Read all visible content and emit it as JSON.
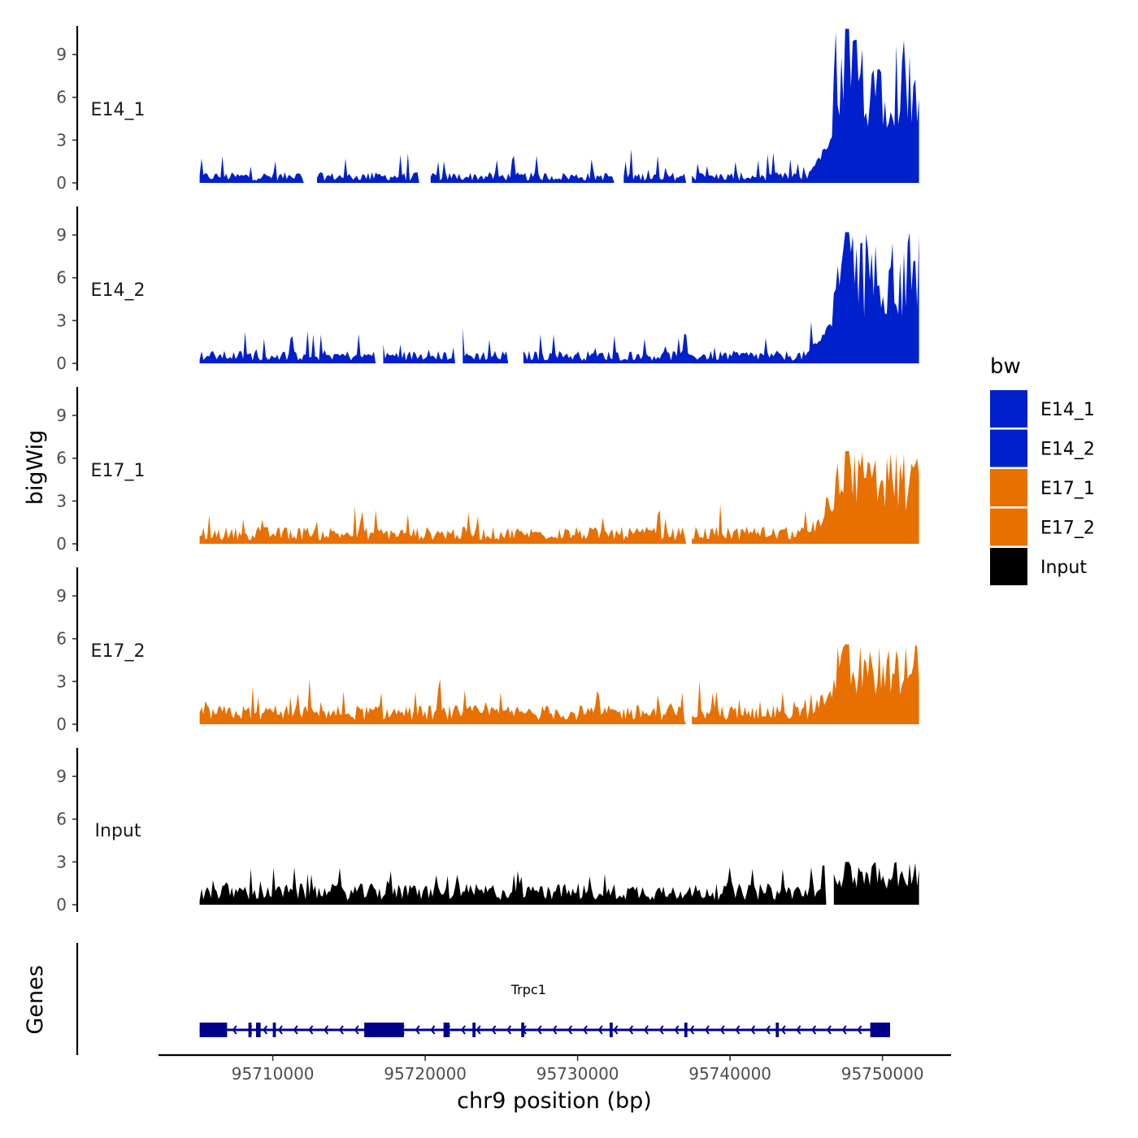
{
  "chart_data": {
    "type": "area",
    "panel_ylabel": "bigWig",
    "genes_ylabel": "Genes",
    "xlabel": "chr9 position (bp)",
    "xlim": [
      95702500,
      95754500
    ],
    "xticks": [
      95710000,
      95720000,
      95730000,
      95740000,
      95750000
    ],
    "x_tick_labels": [
      "95710000",
      "95720000",
      "95730000",
      "95740000",
      "95750000"
    ],
    "ylim": [
      0,
      11
    ],
    "yticks": [
      0,
      3,
      6,
      9
    ],
    "y_tick_labels": [
      "0",
      "3",
      "6",
      "9"
    ],
    "legend_title": "bw",
    "legend_position": "right",
    "data_range": [
      95705200,
      95752400
    ],
    "series": [
      {
        "name": "E14_1",
        "color": "#0020CC",
        "baseline": 0.5,
        "noise": 0.7,
        "peak_max": 10.8,
        "gaps": [
          [
            95712000,
            95712800
          ],
          [
            95719500,
            95720300
          ],
          [
            95732300,
            95732900
          ],
          [
            95737000,
            95737400
          ]
        ]
      },
      {
        "name": "E14_2",
        "color": "#0020CC",
        "baseline": 0.6,
        "noise": 0.7,
        "peak_max": 9.2,
        "gaps": [
          [
            95716700,
            95717200
          ],
          [
            95721900,
            95722400
          ],
          [
            95725400,
            95726400
          ]
        ]
      },
      {
        "name": "E17_1",
        "color": "#E87000",
        "baseline": 0.8,
        "noise": 0.7,
        "peak_max": 6.5,
        "gaps": [
          [
            95737000,
            95737400
          ]
        ]
      },
      {
        "name": "E17_2",
        "color": "#E87000",
        "baseline": 0.9,
        "noise": 0.9,
        "peak_max": 5.6,
        "gaps": [
          [
            95737000,
            95737400
          ]
        ]
      },
      {
        "name": "Input",
        "color": "#000000",
        "baseline": 1.0,
        "noise": 0.7,
        "peak_max": 3.0,
        "gaps": [
          [
            95746300,
            95746700
          ]
        ]
      }
    ],
    "genes": [
      {
        "name": "Trpc1",
        "strand": "-",
        "start": 95705200,
        "end": 95750500,
        "color": "#00008B",
        "exons": [
          [
            95705200,
            95707000
          ],
          [
            95708400,
            95708600
          ],
          [
            95708900,
            95709200
          ],
          [
            95710000,
            95710200
          ],
          [
            95716000,
            95718600
          ],
          [
            95721200,
            95721600
          ],
          [
            95723100,
            95723300
          ],
          [
            95726300,
            95726500
          ],
          [
            95732100,
            95732300
          ],
          [
            95737000,
            95737200
          ],
          [
            95743000,
            95743200
          ],
          [
            95749200,
            95750500
          ]
        ]
      }
    ]
  }
}
